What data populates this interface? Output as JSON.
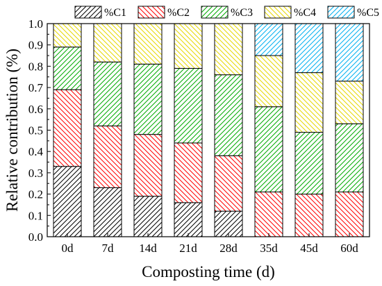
{
  "chart_data": {
    "type": "bar",
    "stacked": true,
    "xlabel": "Composting time (d)",
    "ylabel": "Relative contribution (%)",
    "ylim": [
      0.0,
      1.0
    ],
    "yticks": [
      "0.0",
      "0.1",
      "0.2",
      "0.3",
      "0.4",
      "0.5",
      "0.6",
      "0.7",
      "0.8",
      "0.9",
      "1.0"
    ],
    "grid": false,
    "legend_position": "top",
    "categories": [
      "0d",
      "7d",
      "14d",
      "21d",
      "28d",
      "35d",
      "45d",
      "60d"
    ],
    "series": [
      {
        "name": "%C1",
        "color": "#000000",
        "values": [
          0.33,
          0.23,
          0.19,
          0.16,
          0.12,
          0.0,
          0.0,
          0.0
        ]
      },
      {
        "name": "%C2",
        "color": "#ff0000",
        "values": [
          0.36,
          0.29,
          0.29,
          0.28,
          0.26,
          0.21,
          0.2,
          0.21
        ]
      },
      {
        "name": "%C3",
        "color": "#00aa00",
        "values": [
          0.2,
          0.3,
          0.33,
          0.35,
          0.38,
          0.4,
          0.29,
          0.32
        ]
      },
      {
        "name": "%C4",
        "color": "#e6d800",
        "values": [
          0.11,
          0.18,
          0.19,
          0.21,
          0.24,
          0.24,
          0.28,
          0.2
        ]
      },
      {
        "name": "%C5",
        "color": "#00b0f0",
        "values": [
          0.0,
          0.0,
          0.0,
          0.0,
          0.0,
          0.15,
          0.23,
          0.27
        ]
      }
    ]
  }
}
